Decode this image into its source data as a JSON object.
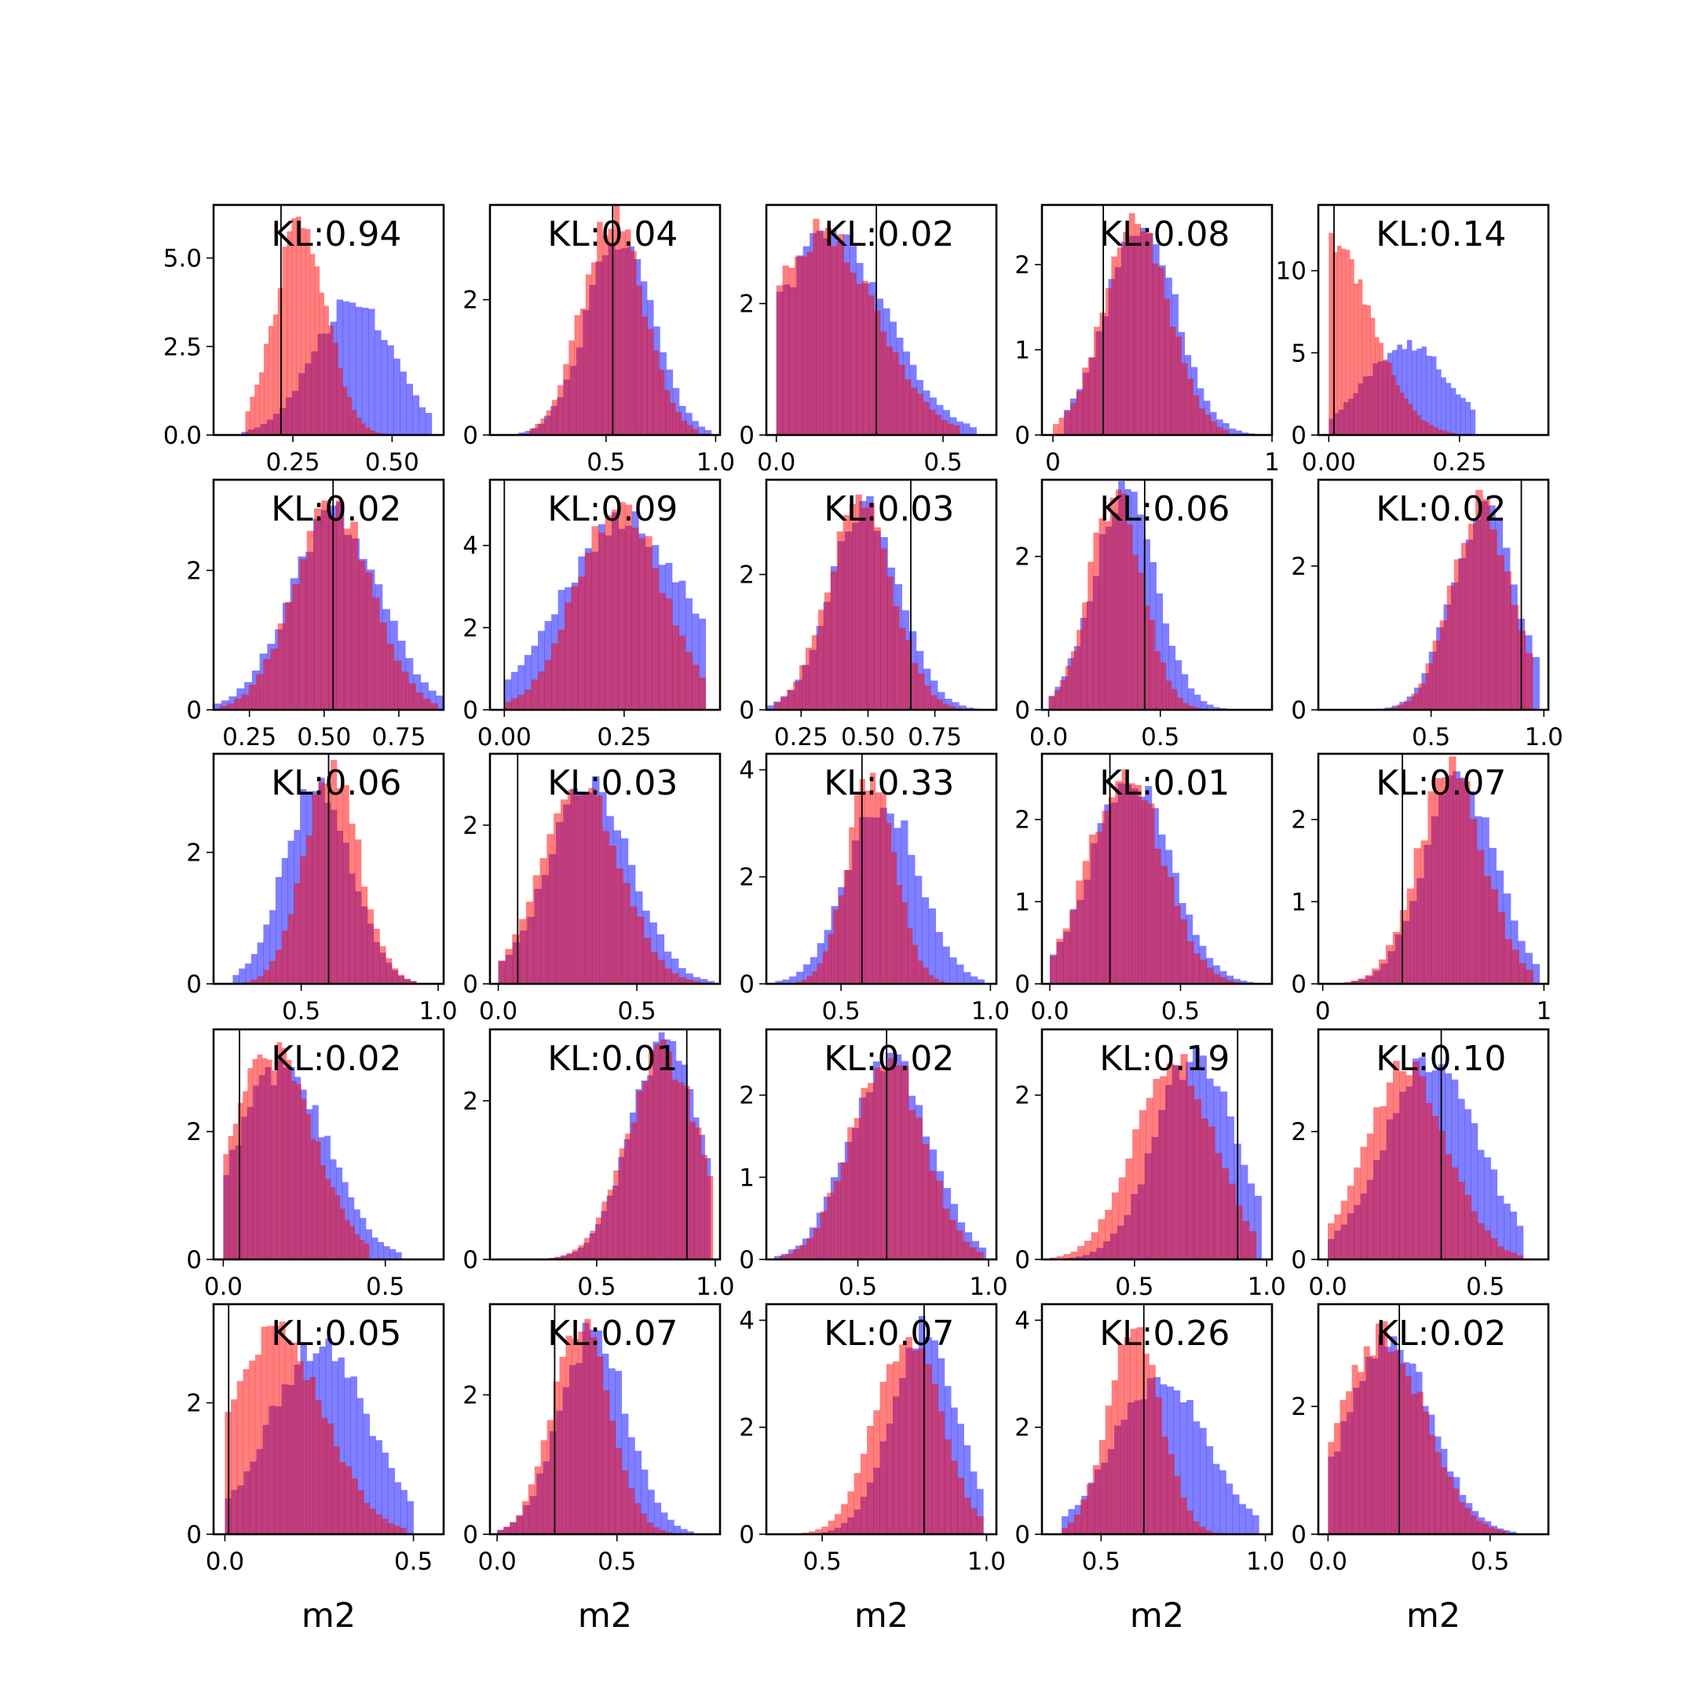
{
  "chart_data": {
    "type": "histogram-grid",
    "rows": 5,
    "cols": 5,
    "xlabel": "m2",
    "series_colors": {
      "posterior": "#0000ff",
      "prior": "#ff0000",
      "reference_line": "#000000"
    },
    "opacity": 0.5,
    "panels": [
      {
        "kl": "KL:0.94",
        "xlim": [
          0.05,
          0.63
        ],
        "ylim": [
          0,
          6.5
        ],
        "xticks": [
          0.25,
          0.5
        ],
        "xticklabels": [
          "0.25",
          "0.50"
        ],
        "yticks": [
          0,
          2.5,
          5
        ],
        "yticklabels": [
          "0.0",
          "2.5",
          "5.0"
        ],
        "vline": 0.22,
        "red": {
          "mu": 0.27,
          "sigma": 0.065,
          "peak": 6.0,
          "lo": 0.13,
          "hi": 0.48
        },
        "blue": {
          "mu": 0.4,
          "sigma": 0.1,
          "peak": 3.8,
          "lo": 0.12,
          "hi": 0.6
        }
      },
      {
        "kl": "KL:0.04",
        "xlim": [
          -0.03,
          1.02
        ],
        "ylim": [
          0,
          3.4
        ],
        "xticks": [
          0.5,
          1.0
        ],
        "xticklabels": [
          "0.5",
          "1.0"
        ],
        "yticks": [
          0,
          2
        ],
        "yticklabels": [
          "0",
          "2"
        ],
        "vline": 0.53,
        "red": {
          "mu": 0.53,
          "sigma": 0.14,
          "peak": 3.2,
          "lo": 0.15,
          "hi": 0.92
        },
        "blue": {
          "mu": 0.56,
          "sigma": 0.15,
          "peak": 2.9,
          "lo": 0.1,
          "hi": 0.98
        }
      },
      {
        "kl": "KL:0.02",
        "xlim": [
          -0.03,
          0.66
        ],
        "ylim": [
          0,
          3.5
        ],
        "xticks": [
          0,
          0.5
        ],
        "xticklabels": [
          "0.0",
          "0.5"
        ],
        "yticks": [
          0,
          2
        ],
        "yticklabels": [
          "0",
          "2"
        ],
        "vline": 0.3,
        "red": {
          "mu": 0.14,
          "sigma": 0.16,
          "peak": 3.1,
          "lo": 0.0,
          "hi": 0.55
        },
        "blue": {
          "mu": 0.16,
          "sigma": 0.17,
          "peak": 3.0,
          "lo": 0.0,
          "hi": 0.6
        }
      },
      {
        "kl": "KL:0.08",
        "xlim": [
          -0.05,
          1.0
        ],
        "ylim": [
          0,
          2.7
        ],
        "xticks": [
          0,
          1
        ],
        "xticklabels": [
          "0",
          "1"
        ],
        "yticks": [
          0,
          1,
          2
        ],
        "yticklabels": [
          "0",
          "1",
          "2"
        ],
        "vline": 0.23,
        "red": {
          "mu": 0.38,
          "sigma": 0.15,
          "peak": 2.5,
          "lo": 0.0,
          "hi": 0.8
        },
        "blue": {
          "mu": 0.4,
          "sigma": 0.16,
          "peak": 2.5,
          "lo": 0.05,
          "hi": 0.92
        }
      },
      {
        "kl": "KL:0.14",
        "xlim": [
          -0.02,
          0.42
        ],
        "ylim": [
          0,
          14
        ],
        "xticks": [
          0,
          0.25
        ],
        "xticklabels": [
          "0.00",
          "0.25"
        ],
        "yticks": [
          0,
          5,
          10
        ],
        "yticklabels": [
          "0",
          "5",
          "10"
        ],
        "vline": 0.01,
        "red": {
          "mu": 0.0,
          "sigma": 0.08,
          "peak": 12.0,
          "lo": 0.0,
          "hi": 0.24
        },
        "blue": {
          "mu": 0.15,
          "sigma": 0.08,
          "peak": 5.5,
          "lo": 0.0,
          "hi": 0.28
        }
      },
      {
        "kl": "KL:0.02",
        "xlim": [
          0.13,
          0.9
        ],
        "ylim": [
          0,
          3.3
        ],
        "xticks": [
          0.25,
          0.5,
          0.75
        ],
        "xticklabels": [
          "0.25",
          "0.50",
          "0.75"
        ],
        "yticks": [
          0,
          2
        ],
        "yticklabels": [
          "0",
          "2"
        ],
        "vline": 0.53,
        "red": {
          "mu": 0.53,
          "sigma": 0.13,
          "peak": 3.0,
          "lo": 0.15,
          "hi": 0.88
        },
        "blue": {
          "mu": 0.54,
          "sigma": 0.15,
          "peak": 2.8,
          "lo": 0.13,
          "hi": 0.9
        }
      },
      {
        "kl": "KL:0.09",
        "xlim": [
          -0.03,
          0.45
        ],
        "ylim": [
          0,
          5.6
        ],
        "xticks": [
          0,
          0.25
        ],
        "xticklabels": [
          "0.00",
          "0.25"
        ],
        "yticks": [
          0,
          2,
          4
        ],
        "yticklabels": [
          "0",
          "2",
          "4"
        ],
        "vline": 0.0,
        "red": {
          "mu": 0.24,
          "sigma": 0.09,
          "peak": 5.0,
          "lo": 0.0,
          "hi": 0.42
        },
        "blue": {
          "mu": 0.25,
          "sigma": 0.13,
          "peak": 4.6,
          "lo": 0.0,
          "hi": 0.42
        }
      },
      {
        "kl": "KL:0.03",
        "xlim": [
          0.12,
          0.98
        ],
        "ylim": [
          0,
          3.4
        ],
        "xticks": [
          0.25,
          0.5,
          0.75
        ],
        "xticklabels": [
          "0.25",
          "0.50",
          "0.75"
        ],
        "yticks": [
          0,
          2
        ],
        "yticklabels": [
          "0",
          "2"
        ],
        "vline": 0.66,
        "red": {
          "mu": 0.47,
          "sigma": 0.12,
          "peak": 3.1,
          "lo": 0.15,
          "hi": 0.85
        },
        "blue": {
          "mu": 0.49,
          "sigma": 0.13,
          "peak": 3.0,
          "lo": 0.12,
          "hi": 0.92
        }
      },
      {
        "kl": "KL:0.06",
        "xlim": [
          -0.03,
          1.0
        ],
        "ylim": [
          0,
          3.0
        ],
        "xticks": [
          0,
          0.5
        ],
        "xticklabels": [
          "0.0",
          "0.5"
        ],
        "yticks": [
          0,
          2
        ],
        "yticklabels": [
          "0",
          "2"
        ],
        "vline": 0.43,
        "red": {
          "mu": 0.3,
          "sigma": 0.12,
          "peak": 2.8,
          "lo": 0.0,
          "hi": 0.75
        },
        "blue": {
          "mu": 0.34,
          "sigma": 0.14,
          "peak": 2.8,
          "lo": 0.0,
          "hi": 0.85
        }
      },
      {
        "kl": "KL:0.02",
        "xlim": [
          0.0,
          1.02
        ],
        "ylim": [
          0,
          3.2
        ],
        "xticks": [
          0.5,
          1.0
        ],
        "xticklabels": [
          "0.5",
          "1.0"
        ],
        "yticks": [
          0,
          2
        ],
        "yticklabels": [
          "0",
          "2"
        ],
        "vline": 0.9,
        "red": {
          "mu": 0.72,
          "sigma": 0.13,
          "peak": 2.9,
          "lo": 0.0,
          "hi": 0.95
        },
        "blue": {
          "mu": 0.73,
          "sigma": 0.14,
          "peak": 2.8,
          "lo": 0.0,
          "hi": 0.98
        }
      },
      {
        "kl": "KL:0.06",
        "xlim": [
          0.18,
          1.02
        ],
        "ylim": [
          0,
          3.5
        ],
        "xticks": [
          0.5,
          1.0
        ],
        "xticklabels": [
          "0.5",
          "1.0"
        ],
        "yticks": [
          0,
          2
        ],
        "yticklabels": [
          "0",
          "2"
        ],
        "vline": 0.6,
        "red": {
          "mu": 0.61,
          "sigma": 0.1,
          "peak": 3.3,
          "lo": 0.25,
          "hi": 0.92
        },
        "blue": {
          "mu": 0.56,
          "sigma": 0.12,
          "peak": 3.1,
          "lo": 0.25,
          "hi": 0.92
        }
      },
      {
        "kl": "KL:0.03",
        "xlim": [
          -0.03,
          0.8
        ],
        "ylim": [
          0,
          2.9
        ],
        "xticks": [
          0,
          0.5
        ],
        "xticklabels": [
          "0.0",
          "0.5"
        ],
        "yticks": [
          0,
          2
        ],
        "yticklabels": [
          "0",
          "2"
        ],
        "vline": 0.07,
        "red": {
          "mu": 0.3,
          "sigma": 0.14,
          "peak": 2.5,
          "lo": 0.0,
          "hi": 0.75
        },
        "blue": {
          "mu": 0.33,
          "sigma": 0.15,
          "peak": 2.5,
          "lo": 0.0,
          "hi": 0.78
        }
      },
      {
        "kl": "KL:0.33",
        "xlim": [
          0.25,
          1.02
        ],
        "ylim": [
          0,
          4.3
        ],
        "xticks": [
          0.5,
          1.0
        ],
        "xticklabels": [
          "0.5",
          "1.0"
        ],
        "yticks": [
          0,
          2,
          4
        ],
        "yticklabels": [
          "0",
          "2",
          "4"
        ],
        "vline": 0.57,
        "red": {
          "mu": 0.6,
          "sigma": 0.08,
          "peak": 3.9,
          "lo": 0.35,
          "hi": 0.88
        },
        "blue": {
          "mu": 0.64,
          "sigma": 0.12,
          "peak": 3.4,
          "lo": 0.28,
          "hi": 0.98
        }
      },
      {
        "kl": "KL:0.01",
        "xlim": [
          -0.03,
          0.85
        ],
        "ylim": [
          0,
          2.8
        ],
        "xticks": [
          0,
          0.5
        ],
        "xticklabels": [
          "0.0",
          "0.5"
        ],
        "yticks": [
          0,
          1,
          2
        ],
        "yticklabels": [
          "0",
          "1",
          "2"
        ],
        "vline": 0.23,
        "red": {
          "mu": 0.29,
          "sigma": 0.14,
          "peak": 2.6,
          "lo": 0.0,
          "hi": 0.75
        },
        "blue": {
          "mu": 0.31,
          "sigma": 0.15,
          "peak": 2.5,
          "lo": 0.0,
          "hi": 0.78
        }
      },
      {
        "kl": "KL:0.07",
        "xlim": [
          -0.02,
          1.02
        ],
        "ylim": [
          0,
          2.8
        ],
        "xticks": [
          0,
          1
        ],
        "xticklabels": [
          "0",
          "1"
        ],
        "yticks": [
          0,
          1,
          2
        ],
        "yticklabels": [
          "0",
          "1",
          "2"
        ],
        "vline": 0.36,
        "red": {
          "mu": 0.58,
          "sigma": 0.15,
          "peak": 2.6,
          "lo": 0.0,
          "hi": 0.95
        },
        "blue": {
          "mu": 0.62,
          "sigma": 0.16,
          "peak": 2.5,
          "lo": 0.0,
          "hi": 0.98
        }
      },
      {
        "kl": "KL:0.02",
        "xlim": [
          -0.03,
          0.68
        ],
        "ylim": [
          0,
          3.6
        ],
        "xticks": [
          0,
          0.5
        ],
        "xticklabels": [
          "0.0",
          "0.5"
        ],
        "yticks": [
          0,
          2
        ],
        "yticklabels": [
          "0",
          "2"
        ],
        "vline": 0.05,
        "red": {
          "mu": 0.15,
          "sigma": 0.13,
          "peak": 3.2,
          "lo": 0.0,
          "hi": 0.45
        },
        "blue": {
          "mu": 0.18,
          "sigma": 0.14,
          "peak": 3.0,
          "lo": 0.0,
          "hi": 0.55
        }
      },
      {
        "kl": "KL:0.01",
        "xlim": [
          0.05,
          1.02
        ],
        "ylim": [
          0,
          2.9
        ],
        "xticks": [
          0.5,
          1.0
        ],
        "xticklabels": [
          "0.5",
          "1.0"
        ],
        "yticks": [
          0,
          2
        ],
        "yticklabels": [
          "0",
          "2"
        ],
        "vline": 0.88,
        "red": {
          "mu": 0.78,
          "sigma": 0.15,
          "peak": 2.6,
          "lo": 0.25,
          "hi": 0.99
        },
        "blue": {
          "mu": 0.79,
          "sigma": 0.15,
          "peak": 2.7,
          "lo": 0.25,
          "hi": 0.98
        }
      },
      {
        "kl": "KL:0.02",
        "xlim": [
          0.15,
          1.03
        ],
        "ylim": [
          0,
          2.8
        ],
        "xticks": [
          0.5,
          1.0
        ],
        "xticklabels": [
          "0.5",
          "1.0"
        ],
        "yticks": [
          0,
          1,
          2
        ],
        "yticklabels": [
          "0",
          "1",
          "2"
        ],
        "vline": 0.61,
        "red": {
          "mu": 0.61,
          "sigma": 0.14,
          "peak": 2.5,
          "lo": 0.2,
          "hi": 0.98
        },
        "blue": {
          "mu": 0.62,
          "sigma": 0.15,
          "peak": 2.5,
          "lo": 0.18,
          "hi": 0.99
        }
      },
      {
        "kl": "KL:0.19",
        "xlim": [
          0.15,
          1.02
        ],
        "ylim": [
          0,
          2.8
        ],
        "xticks": [
          0.5,
          1.0
        ],
        "xticklabels": [
          "0.5",
          "1.0"
        ],
        "yticks": [
          0,
          2
        ],
        "yticklabels": [
          "0",
          "2"
        ],
        "vline": 0.89,
        "red": {
          "mu": 0.65,
          "sigma": 0.15,
          "peak": 2.5,
          "lo": 0.18,
          "hi": 0.96
        },
        "blue": {
          "mu": 0.73,
          "sigma": 0.15,
          "peak": 2.5,
          "lo": 0.2,
          "hi": 0.98
        }
      },
      {
        "kl": "KL:0.10",
        "xlim": [
          -0.03,
          0.7
        ],
        "ylim": [
          0,
          3.6
        ],
        "xticks": [
          0,
          0.5
        ],
        "xticklabels": [
          "0.0",
          "0.5"
        ],
        "yticks": [
          0,
          2
        ],
        "yticklabels": [
          "0",
          "2"
        ],
        "vline": 0.36,
        "red": {
          "mu": 0.25,
          "sigma": 0.13,
          "peak": 3.0,
          "lo": 0.0,
          "hi": 0.62
        },
        "blue": {
          "mu": 0.33,
          "sigma": 0.15,
          "peak": 3.1,
          "lo": 0.0,
          "hi": 0.62
        }
      },
      {
        "kl": "KL:0.05",
        "xlim": [
          -0.03,
          0.58
        ],
        "ylim": [
          0,
          3.5
        ],
        "xticks": [
          0,
          0.5
        ],
        "xticklabels": [
          "0.0",
          "0.5"
        ],
        "yticks": [
          0,
          2
        ],
        "yticklabels": [
          "0",
          "2"
        ],
        "vline": 0.01,
        "red": {
          "mu": 0.13,
          "sigma": 0.13,
          "peak": 3.1,
          "lo": 0.0,
          "hi": 0.48
        },
        "blue": {
          "mu": 0.25,
          "sigma": 0.13,
          "peak": 2.9,
          "lo": 0.0,
          "hi": 0.5
        }
      },
      {
        "kl": "KL:0.07",
        "xlim": [
          -0.03,
          0.93
        ],
        "ylim": [
          0,
          3.3
        ],
        "xticks": [
          0,
          0.5
        ],
        "xticklabels": [
          "0.0",
          "0.5"
        ],
        "yticks": [
          0,
          2
        ],
        "yticklabels": [
          "0",
          "2"
        ],
        "vline": 0.24,
        "red": {
          "mu": 0.35,
          "sigma": 0.12,
          "peak": 3.0,
          "lo": 0.0,
          "hi": 0.78
        },
        "blue": {
          "mu": 0.4,
          "sigma": 0.14,
          "peak": 2.9,
          "lo": 0.0,
          "hi": 0.82
        }
      },
      {
        "kl": "KL:0.07",
        "xlim": [
          0.33,
          1.03
        ],
        "ylim": [
          0,
          4.3
        ],
        "xticks": [
          0.5,
          1.0
        ],
        "xticklabels": [
          "0.5",
          "1.0"
        ],
        "yticks": [
          0,
          2,
          4
        ],
        "yticklabels": [
          "0",
          "2",
          "4"
        ],
        "vline": 0.81,
        "red": {
          "mu": 0.76,
          "sigma": 0.1,
          "peak": 3.7,
          "lo": 0.4,
          "hi": 0.99
        },
        "blue": {
          "mu": 0.81,
          "sigma": 0.1,
          "peak": 3.8,
          "lo": 0.4,
          "hi": 0.99
        }
      },
      {
        "kl": "KL:0.26",
        "xlim": [
          0.32,
          1.02
        ],
        "ylim": [
          0,
          4.3
        ],
        "xticks": [
          0.5,
          1.0
        ],
        "xticklabels": [
          "0.5",
          "1.0"
        ],
        "yticks": [
          0,
          2,
          4
        ],
        "yticklabels": [
          "0",
          "2",
          "4"
        ],
        "vline": 0.63,
        "red": {
          "mu": 0.6,
          "sigma": 0.08,
          "peak": 3.9,
          "lo": 0.38,
          "hi": 0.95
        },
        "blue": {
          "mu": 0.68,
          "sigma": 0.14,
          "peak": 2.9,
          "lo": 0.38,
          "hi": 0.98
        }
      },
      {
        "kl": "KL:0.02",
        "xlim": [
          -0.03,
          0.68
        ],
        "ylim": [
          0,
          3.6
        ],
        "xticks": [
          0,
          0.5
        ],
        "xticklabels": [
          "0.0",
          "0.5"
        ],
        "yticks": [
          0,
          2
        ],
        "yticklabels": [
          "0",
          "2"
        ],
        "vline": 0.22,
        "red": {
          "mu": 0.17,
          "sigma": 0.13,
          "peak": 3.1,
          "lo": 0.0,
          "hi": 0.55
        },
        "blue": {
          "mu": 0.19,
          "sigma": 0.13,
          "peak": 3.0,
          "lo": 0.0,
          "hi": 0.58
        }
      }
    ]
  }
}
